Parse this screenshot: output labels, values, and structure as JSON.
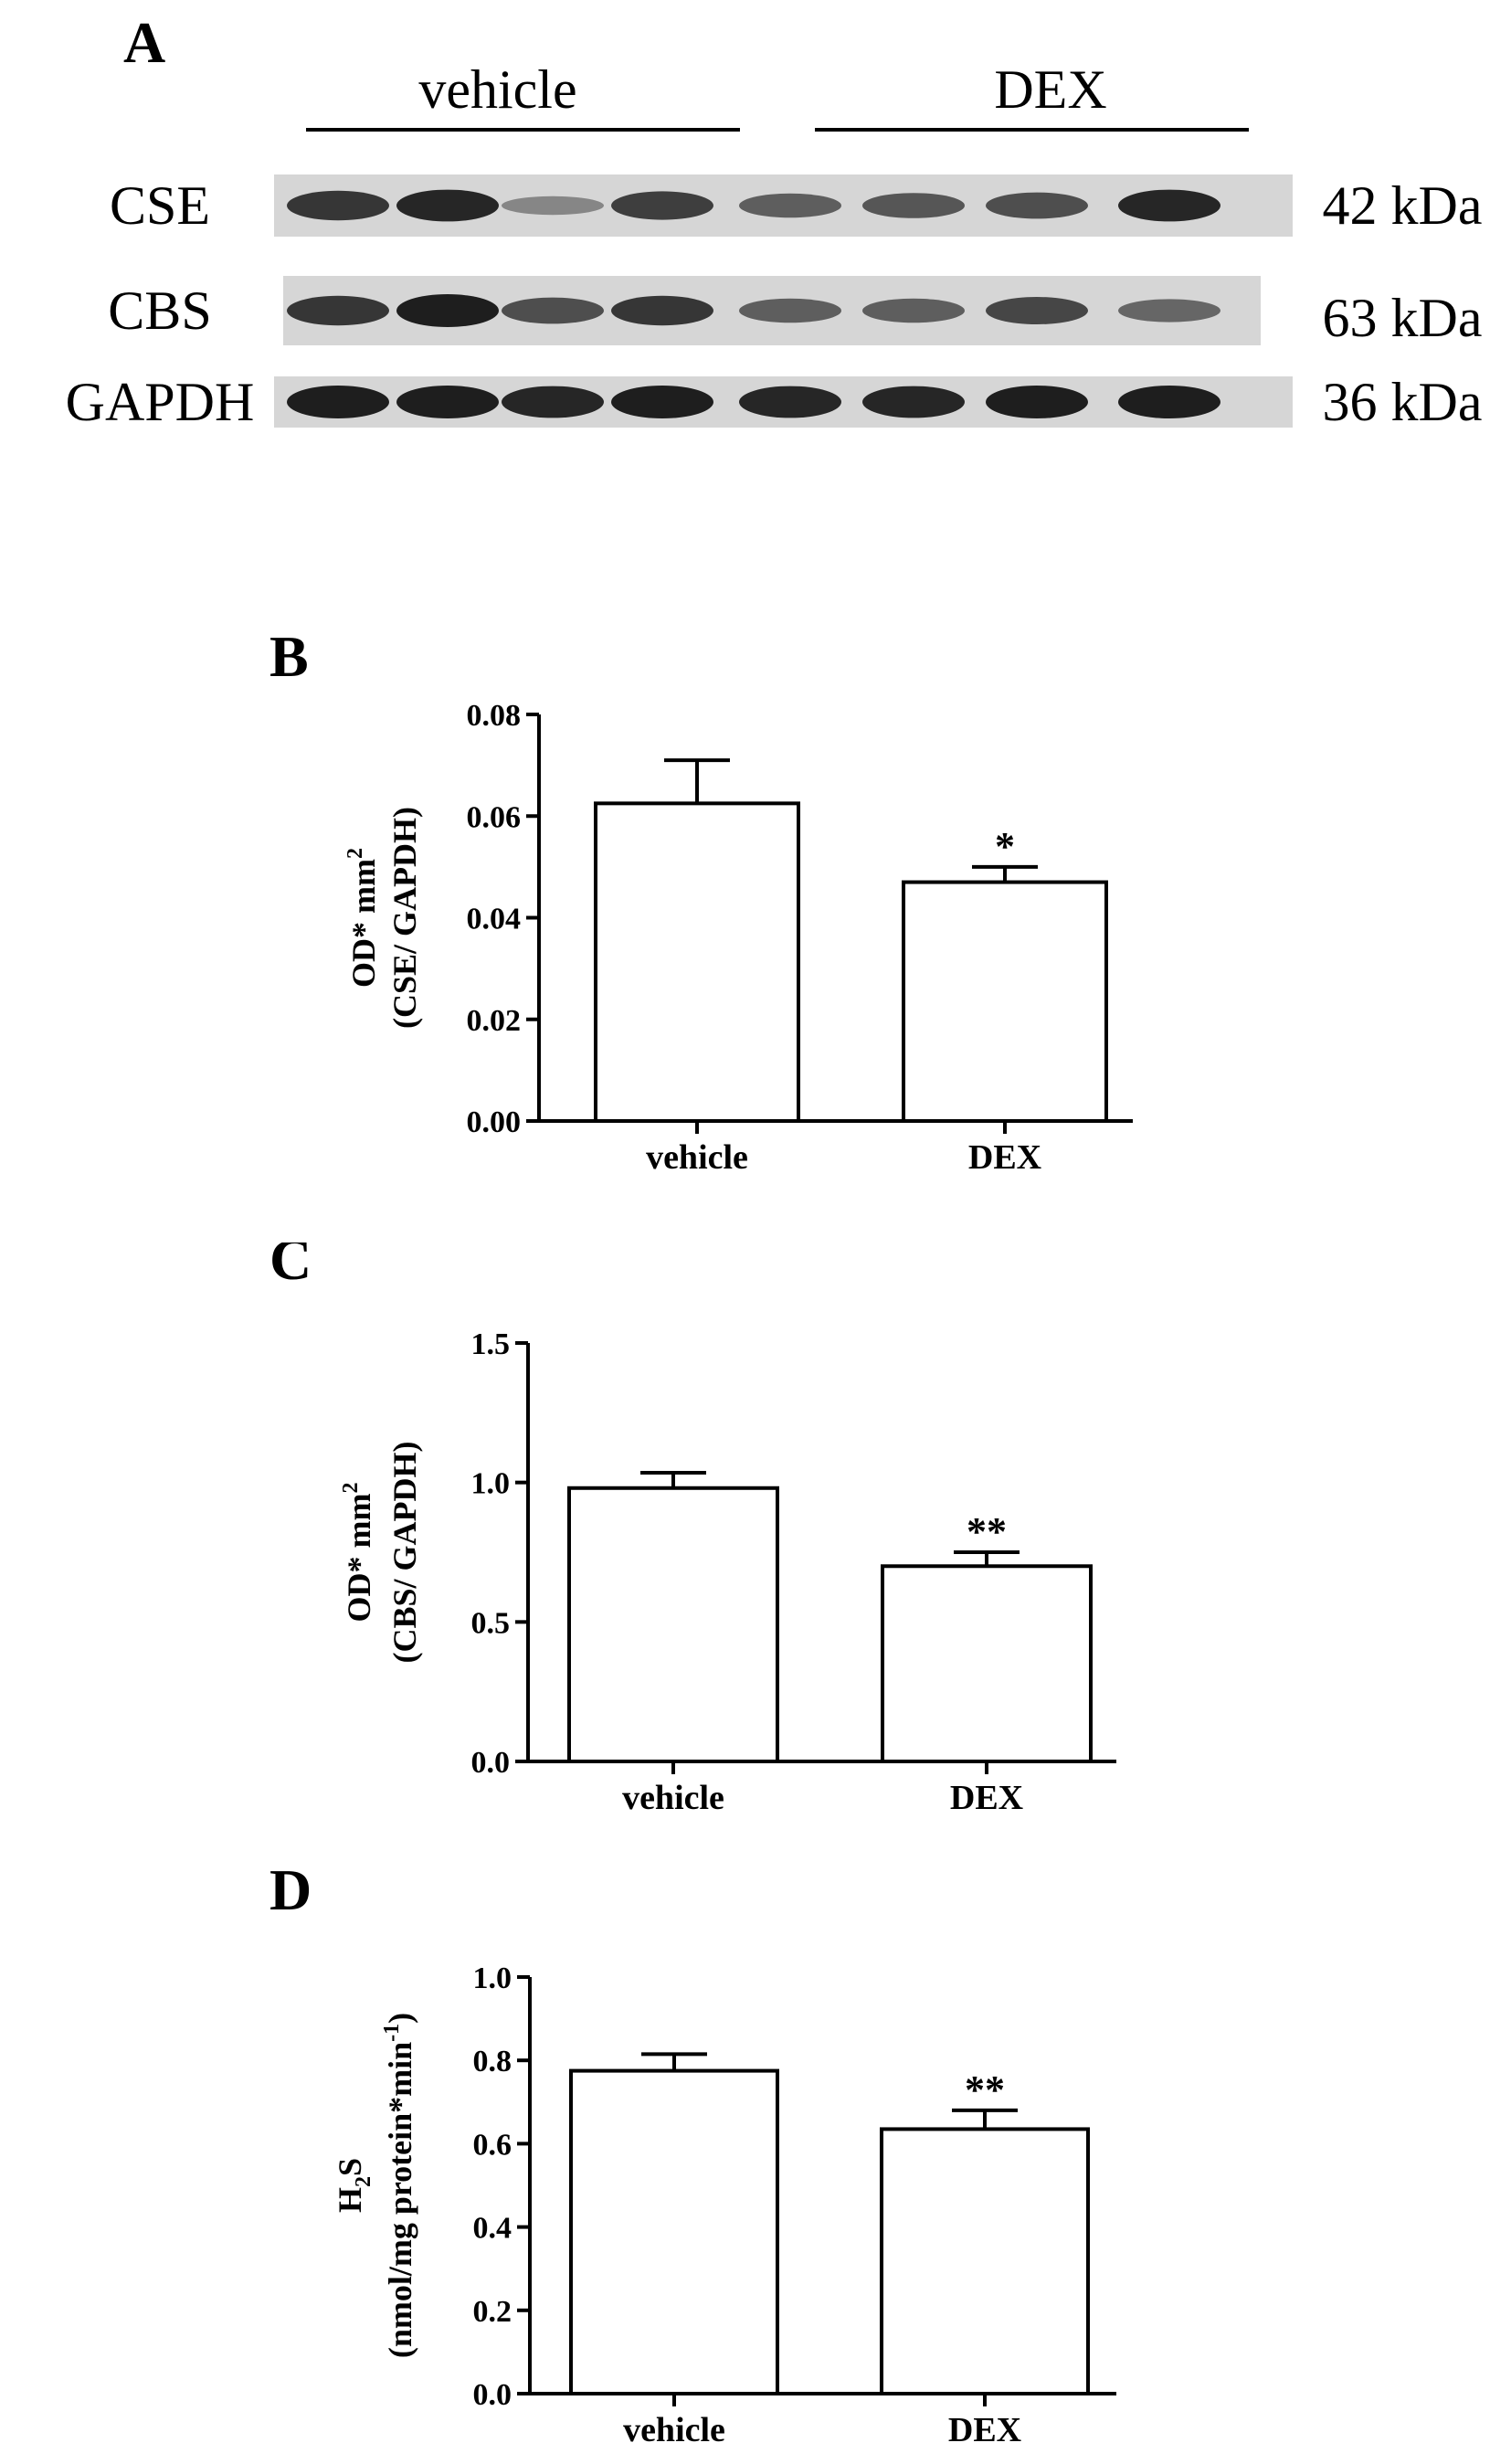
{
  "blot": {
    "panel": "A",
    "groups": [
      "vehicle",
      "DEX"
    ],
    "rows": [
      {
        "protein": "CSE",
        "mw": "42 kDa",
        "intensities": [
          0.85,
          0.95,
          0.35,
          0.8,
          0.6,
          0.65,
          0.7,
          0.95
        ]
      },
      {
        "protein": "CBS",
        "mw": "63 kDa",
        "intensities": [
          0.85,
          1.0,
          0.7,
          0.85,
          0.6,
          0.6,
          0.75,
          0.55
        ]
      },
      {
        "protein": "GAPDH",
        "mw": "36 kDa",
        "intensities": [
          1.0,
          1.0,
          0.95,
          1.0,
          0.95,
          0.95,
          1.0,
          1.0
        ]
      }
    ]
  },
  "chart_data": [
    {
      "panel": "B",
      "type": "bar",
      "categories": [
        "vehicle",
        "DEX"
      ],
      "values": [
        0.0625,
        0.047
      ],
      "errors": [
        0.0085,
        0.003
      ],
      "significance": [
        "",
        "*"
      ],
      "ylabel_line1": "OD* mm",
      "ylabel_sup": "2",
      "ylabel_line2": "(CSE/ GAPDH)",
      "ylim": [
        0,
        0.08
      ],
      "yticks": [
        "0.00",
        "0.02",
        "0.04",
        "0.06",
        "0.08"
      ]
    },
    {
      "panel": "C",
      "type": "bar",
      "categories": [
        "vehicle",
        "DEX"
      ],
      "values": [
        0.98,
        0.7
      ],
      "errors": [
        0.055,
        0.05
      ],
      "significance": [
        "",
        "**"
      ],
      "ylabel_line1": "OD* mm",
      "ylabel_sup": "2",
      "ylabel_line2": "(CBS/ GAPDH)",
      "ylim": [
        0,
        1.5
      ],
      "yticks": [
        "0.0",
        "0.5",
        "1.0",
        "1.5"
      ]
    },
    {
      "panel": "D",
      "type": "bar",
      "categories": [
        "vehicle",
        "DEX"
      ],
      "values": [
        0.775,
        0.635
      ],
      "errors": [
        0.04,
        0.045
      ],
      "significance": [
        "",
        "**"
      ],
      "ylabel_line1": "H",
      "ylabel_sub": "2",
      "ylabel_line1b": "S",
      "ylabel_line2": "(nmol/mg protein*min",
      "ylabel_line2_sup": "-1",
      "ylabel_line2_end": ")",
      "ylim": [
        0,
        1.0
      ],
      "yticks": [
        "0.0",
        "0.2",
        "0.4",
        "0.6",
        "0.8",
        "1.0"
      ]
    }
  ]
}
